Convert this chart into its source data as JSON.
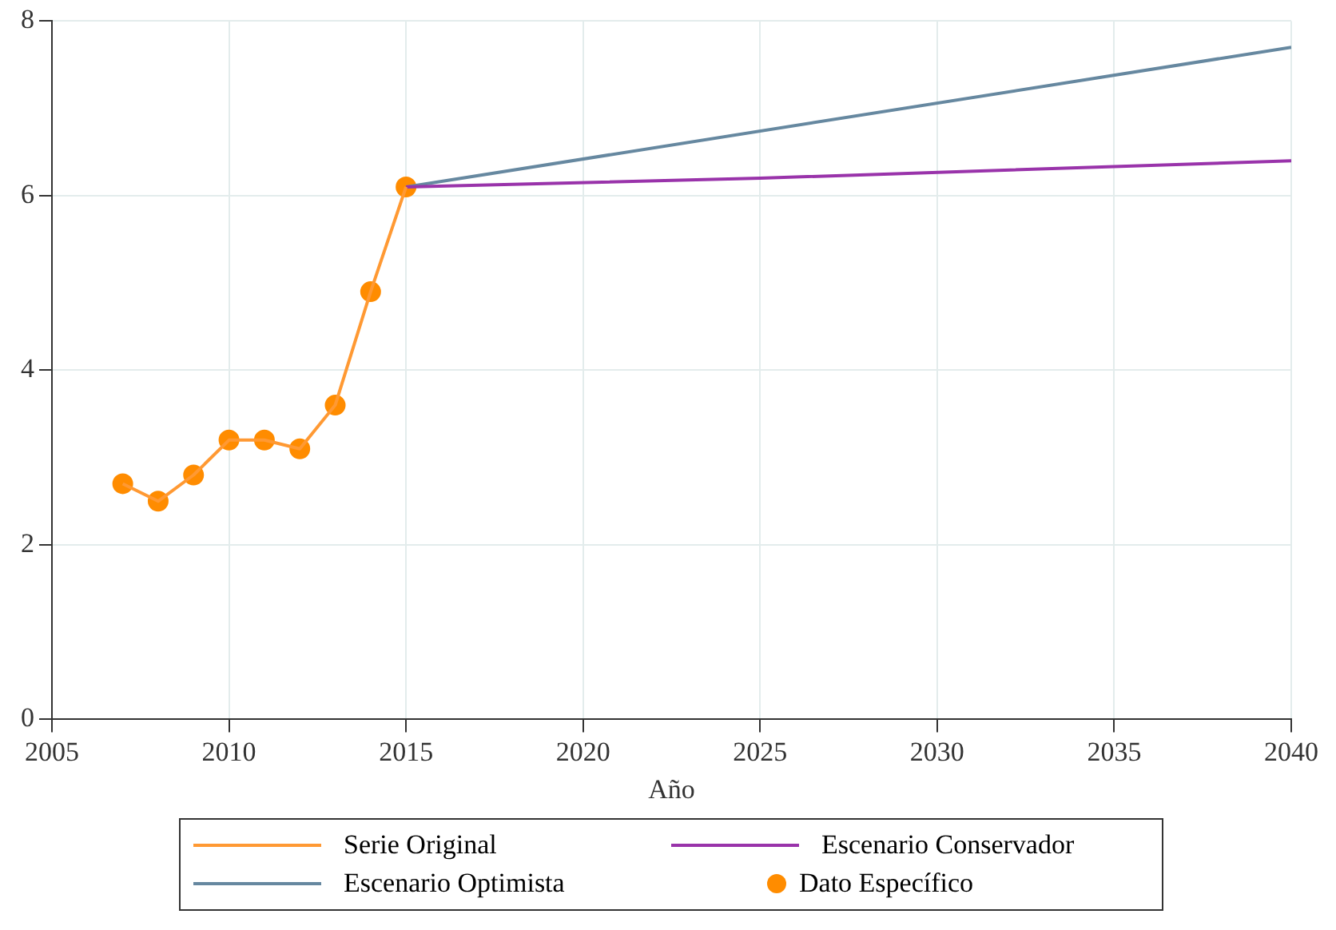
{
  "chart_data": {
    "type": "line",
    "xlabel": "Año",
    "xlim": [
      2005,
      2040
    ],
    "xticks": [
      2005,
      2010,
      2015,
      2020,
      2025,
      2030,
      2035,
      2040
    ],
    "ylim": [
      0,
      8
    ],
    "yticks": [
      0,
      2,
      4,
      6,
      8
    ],
    "grid": true,
    "legend": "bottom",
    "series": [
      {
        "name": "Serie Original",
        "color": "#ff9933",
        "marker": "none",
        "x": [
          2007,
          2008,
          2009,
          2010,
          2011,
          2012,
          2013,
          2014,
          2015
        ],
        "values": [
          2.7,
          2.5,
          2.8,
          3.2,
          3.2,
          3.1,
          3.6,
          4.9,
          6.1
        ]
      },
      {
        "name": "Escenario Conservador",
        "color": "#9933aa",
        "marker": "none",
        "x": [
          2015,
          2025,
          2040
        ],
        "values": [
          6.1,
          6.2,
          6.4
        ]
      },
      {
        "name": "Escenario Optimista",
        "color": "#6688a0",
        "marker": "none",
        "x": [
          2015,
          2040
        ],
        "values": [
          6.1,
          7.7
        ]
      },
      {
        "name": "Dato Específico",
        "color": "#ff8c00",
        "type": "scatter",
        "marker": "circle",
        "x": [
          2007,
          2008,
          2009,
          2010,
          2011,
          2012,
          2013,
          2014,
          2015
        ],
        "values": [
          2.7,
          2.5,
          2.8,
          3.2,
          3.2,
          3.1,
          3.6,
          4.9,
          6.1
        ]
      }
    ]
  }
}
